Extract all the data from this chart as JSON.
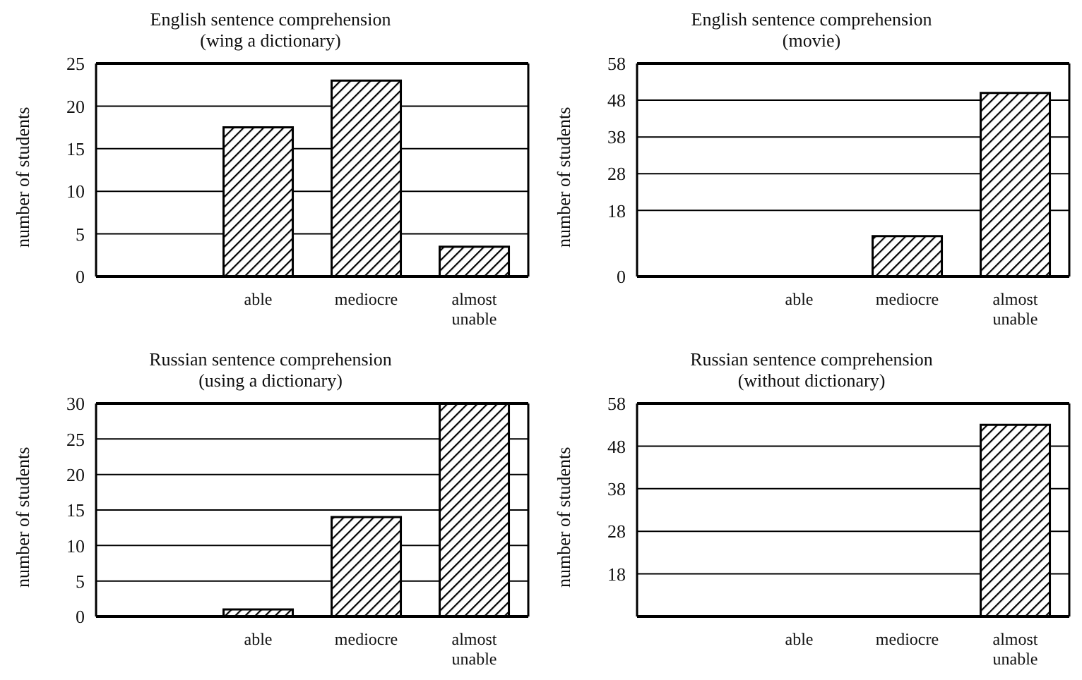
{
  "chart_data": [
    {
      "type": "bar",
      "title": "English sentence comprehension",
      "subtitle": "(wing a dictionary)",
      "ylabel": "number of students",
      "categories": [
        null,
        "able",
        "mediocre",
        "almost unable"
      ],
      "values": [
        null,
        17.5,
        23,
        3.5
      ],
      "color": "#000000",
      "ylim": [
        0,
        25
      ],
      "yticks": [
        0,
        5,
        10,
        15,
        20,
        25
      ],
      "grid": "y"
    },
    {
      "type": "bar",
      "title": "English sentence comprehension",
      "subtitle": "(movie)",
      "ylabel": "number of students",
      "categories": [
        null,
        "able",
        "mediocre",
        "almost unable"
      ],
      "values": [
        null,
        null,
        11,
        50
      ],
      "color": "#000000",
      "ylim": [
        0,
        58
      ],
      "yticks": [
        0,
        18,
        28,
        38,
        48,
        58
      ],
      "grid": "y"
    },
    {
      "type": "bar",
      "title": "Russian sentence comprehension",
      "subtitle": "(using a dictionary)",
      "ylabel": "number of students",
      "categories": [
        null,
        "able",
        "mediocre",
        "almost unable"
      ],
      "values": [
        null,
        1,
        14,
        30
      ],
      "color": "#000000",
      "ylim": [
        0,
        30
      ],
      "yticks": [
        0,
        5,
        10,
        15,
        20,
        25,
        30
      ],
      "grid": "y"
    },
    {
      "type": "bar",
      "title": "Russian sentence comprehension",
      "subtitle": "(without dictionary)",
      "ylabel": "number of students",
      "categories": [
        null,
        "able",
        "mediocre",
        "almost unable"
      ],
      "values": [
        null,
        null,
        null,
        53
      ],
      "color": "#000000",
      "ylim": [
        8,
        58
      ],
      "yticks": [
        18,
        28,
        38,
        48,
        58
      ],
      "grid": "y"
    }
  ]
}
